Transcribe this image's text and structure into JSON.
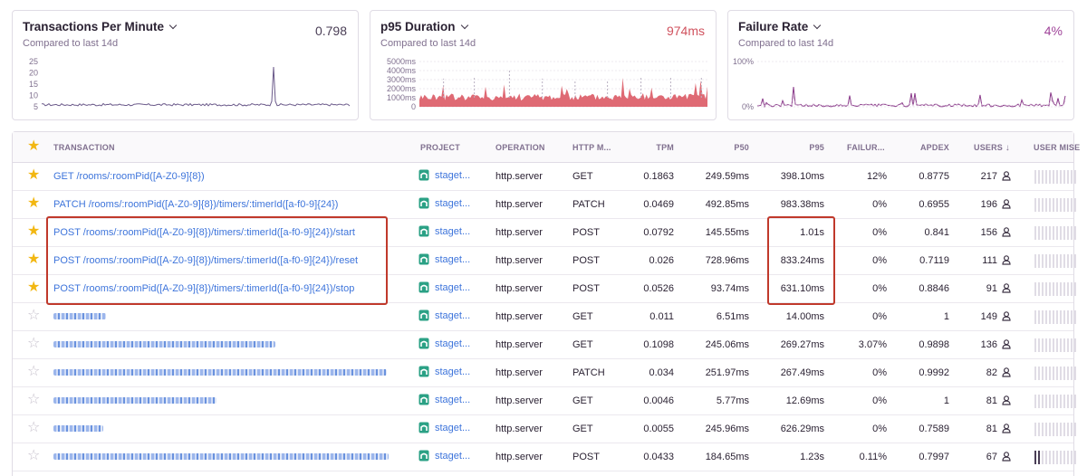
{
  "cards": [
    {
      "title": "Transactions Per Minute",
      "subtitle": "Compared to last 14d",
      "value": "0.798",
      "value_color": "#4a3e56",
      "y_ticks": [
        "25",
        "20",
        "15",
        "10",
        "5"
      ],
      "line_color": "#6b5a8a"
    },
    {
      "title": "p95 Duration",
      "subtitle": "Compared to last 14d",
      "value": "974ms",
      "value_color": "#d0525e",
      "y_ticks": [
        "5000ms",
        "4000ms",
        "3000ms",
        "2000ms",
        "1000ms",
        "0"
      ],
      "line_color": "#d9505c"
    },
    {
      "title": "Failure Rate",
      "subtitle": "Compared to last 14d",
      "value": "4%",
      "value_color": "#a0459a",
      "y_ticks": [
        "100%",
        "0%"
      ],
      "line_color": "#8a3a8a"
    }
  ],
  "table": {
    "headers": {
      "transaction": "TRANSACTION",
      "project": "PROJECT",
      "operation": "OPERATION",
      "http_method": "HTTP M...",
      "tpm": "TPM",
      "p50": "P50",
      "p95": "P95",
      "failure": "FAILUR...",
      "apdex": "APDEX",
      "users": "USERS",
      "user_misery": "USER MISE"
    },
    "rows": [
      {
        "starred": true,
        "transaction": "GET /rooms/:roomPid([A-Z0-9]{8})",
        "project": "staget...",
        "operation": "http.server",
        "method": "GET",
        "tpm": "0.1863",
        "p50": "249.59ms",
        "p95": "398.10ms",
        "failure": "12%",
        "apdex": "0.8775",
        "users": "217",
        "misery": 0
      },
      {
        "starred": true,
        "transaction": "PATCH /rooms/:roomPid([A-Z0-9]{8})/timers/:timerId([a-f0-9]{24})",
        "project": "staget...",
        "operation": "http.server",
        "method": "PATCH",
        "tpm": "0.0469",
        "p50": "492.85ms",
        "p95": "983.38ms",
        "failure": "0%",
        "apdex": "0.6955",
        "users": "196",
        "misery": 0
      },
      {
        "starred": true,
        "transaction": "POST /rooms/:roomPid([A-Z0-9]{8})/timers/:timerId([a-f0-9]{24})/start",
        "project": "staget...",
        "operation": "http.server",
        "method": "POST",
        "tpm": "0.0792",
        "p50": "145.55ms",
        "p95": "1.01s",
        "failure": "0%",
        "apdex": "0.841",
        "users": "156",
        "misery": 0
      },
      {
        "starred": true,
        "transaction": "POST /rooms/:roomPid([A-Z0-9]{8})/timers/:timerId([a-f0-9]{24})/reset",
        "project": "staget...",
        "operation": "http.server",
        "method": "POST",
        "tpm": "0.026",
        "p50": "728.96ms",
        "p95": "833.24ms",
        "failure": "0%",
        "apdex": "0.7119",
        "users": "111",
        "misery": 0
      },
      {
        "starred": true,
        "transaction": "POST /rooms/:roomPid([A-Z0-9]{8})/timers/:timerId([a-f0-9]{24})/stop",
        "project": "staget...",
        "operation": "http.server",
        "method": "POST",
        "tpm": "0.0526",
        "p50": "93.74ms",
        "p95": "631.10ms",
        "failure": "0%",
        "apdex": "0.8846",
        "users": "91",
        "misery": 0
      },
      {
        "starred": false,
        "transaction": "",
        "project": "staget...",
        "operation": "http.server",
        "method": "GET",
        "tpm": "0.011",
        "p50": "6.51ms",
        "p95": "14.00ms",
        "failure": "0%",
        "apdex": "1",
        "users": "149",
        "misery": 0
      },
      {
        "starred": false,
        "transaction": "",
        "project": "staget...",
        "operation": "http.server",
        "method": "GET",
        "tpm": "0.1098",
        "p50": "245.06ms",
        "p95": "269.27ms",
        "failure": "3.07%",
        "apdex": "0.9898",
        "users": "136",
        "misery": 0
      },
      {
        "starred": false,
        "transaction": "",
        "project": "staget...",
        "operation": "http.server",
        "method": "PATCH",
        "tpm": "0.034",
        "p50": "251.97ms",
        "p95": "267.49ms",
        "failure": "0%",
        "apdex": "0.9992",
        "users": "82",
        "misery": 0
      },
      {
        "starred": false,
        "transaction": "",
        "project": "staget...",
        "operation": "http.server",
        "method": "GET",
        "tpm": "0.0046",
        "p50": "5.77ms",
        "p95": "12.69ms",
        "failure": "0%",
        "apdex": "1",
        "users": "81",
        "misery": 0
      },
      {
        "starred": false,
        "transaction": "",
        "project": "staget...",
        "operation": "http.server",
        "method": "GET",
        "tpm": "0.0055",
        "p50": "245.96ms",
        "p95": "626.29ms",
        "failure": "0%",
        "apdex": "0.7589",
        "users": "81",
        "misery": 0
      },
      {
        "starred": false,
        "transaction": "",
        "project": "staget...",
        "operation": "http.server",
        "method": "POST",
        "tpm": "0.0433",
        "p50": "184.65ms",
        "p95": "1.23s",
        "failure": "0.11%",
        "apdex": "0.7997",
        "users": "67",
        "misery": 2
      }
    ]
  },
  "colors": {
    "accent_link": "#3d74db",
    "star_active": "#f2b712",
    "highlight_box": "#c0392b",
    "project_icon": "#2ba185"
  }
}
